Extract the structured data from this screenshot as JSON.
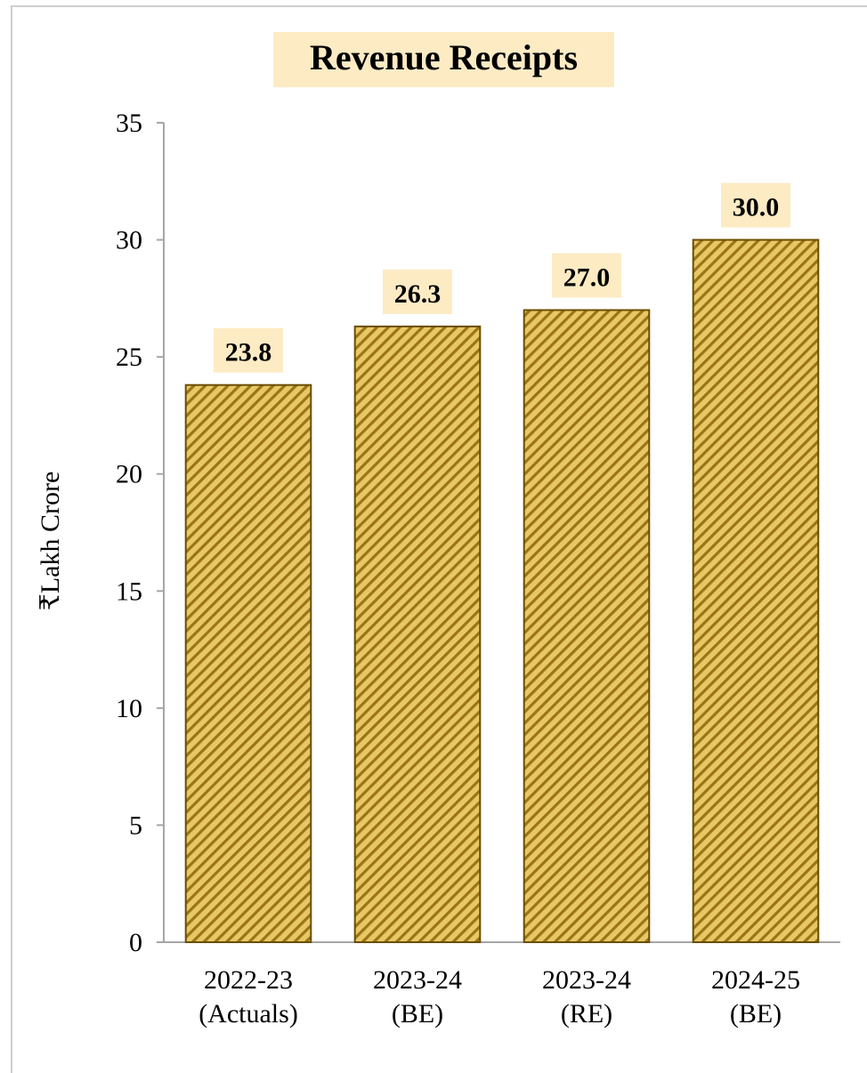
{
  "chart_data": {
    "type": "bar",
    "title": "Revenue Receipts",
    "ylabel": "₹Lakh Crore",
    "xlabel": "",
    "ylim": [
      0,
      35
    ],
    "yticks": [
      0,
      5,
      10,
      15,
      20,
      25,
      30,
      35
    ],
    "grid": false,
    "categories": [
      [
        "2022-23",
        "(Actuals)"
      ],
      [
        "2023-24",
        "(BE)"
      ],
      [
        "2023-24",
        "(RE)"
      ],
      [
        "2024-25",
        "(BE)"
      ]
    ],
    "values": [
      23.8,
      26.3,
      27.0,
      30.0
    ],
    "value_labels": [
      "23.8",
      "26.3",
      "27.0",
      "30.0"
    ],
    "colors": {
      "bar_fill": "#e7c766",
      "bar_hatch": "#9a7416",
      "bar_border": "#6b4e00",
      "label_bg": "#fdebc4",
      "axis": "#a6a6a6",
      "text": "#000000"
    }
  }
}
